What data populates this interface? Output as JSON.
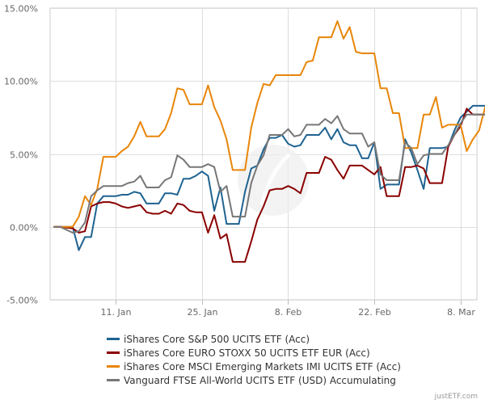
{
  "chart_data": {
    "type": "line",
    "title": "",
    "xlabel": "",
    "ylabel": "",
    "ylim": [
      -5,
      15
    ],
    "yticks": [
      -5,
      0,
      5,
      10,
      15
    ],
    "ytick_labels": [
      "-5.00%",
      "0.00%",
      "5.00%",
      "10.00%",
      "15.00%"
    ],
    "x_range": [
      1,
      69
    ],
    "xticks": [
      {
        "x": 11,
        "label": "11. Jan"
      },
      {
        "x": 25,
        "label": "25. Jan"
      },
      {
        "x": 39,
        "label": "8. Feb"
      },
      {
        "x": 53,
        "label": "22. Feb"
      },
      {
        "x": 67,
        "label": "8. Mar"
      }
    ],
    "x": [
      1,
      2,
      4,
      5,
      6,
      7,
      8,
      9,
      10,
      11,
      12,
      13,
      14,
      15,
      16,
      17,
      18,
      19,
      20,
      21,
      22,
      23,
      24,
      25,
      26,
      27,
      28,
      29,
      30,
      31,
      32,
      33,
      34,
      35,
      36,
      37,
      38,
      39,
      40,
      41,
      42,
      43,
      44,
      45,
      46,
      47,
      48,
      49,
      50,
      51,
      52,
      53,
      54,
      55,
      56,
      57,
      58,
      59,
      60,
      61,
      62,
      63,
      64,
      65,
      66,
      67,
      68,
      69,
      70,
      71,
      72
    ],
    "series": [
      {
        "name": "iShares Core S&P 500 UCITS ETF (Acc)",
        "color": "#1f6391",
        "values": [
          0,
          0,
          0,
          -1.6,
          -0.7,
          -0.7,
          1.6,
          2.1,
          2.1,
          2.1,
          2.2,
          2.2,
          2.4,
          2.3,
          1.6,
          1.6,
          1.6,
          2.3,
          2.3,
          2.2,
          3.3,
          3.3,
          3.5,
          3.8,
          3.5,
          1.1,
          2.7,
          0.2,
          0.2,
          0.2,
          2.4,
          4.0,
          4.2,
          5.3,
          6.1,
          6.1,
          6.3,
          5.7,
          5.5,
          5.6,
          6.3,
          6.3,
          6.3,
          6.8,
          6.0,
          6.7,
          5.8,
          5.6,
          5.6,
          4.7,
          4.7,
          5.8,
          2.6,
          2.9,
          2.9,
          2.9,
          6.0,
          5.1,
          3.9,
          2.6,
          5.4,
          5.4,
          5.4,
          5.5,
          6.6,
          7.5,
          7.9,
          8.3,
          8.3,
          8.3,
          8.1
        ]
      },
      {
        "name": "iShares Core EURO STOXX 50 UCITS ETF EUR (Acc)",
        "color": "#8b0000",
        "values": [
          0,
          0,
          -0.1,
          -0.4,
          -0.3,
          1.4,
          1.6,
          1.7,
          1.7,
          1.6,
          1.4,
          1.3,
          1.4,
          1.5,
          1.0,
          0.9,
          0.9,
          1.1,
          0.9,
          1.6,
          1.5,
          1.1,
          1.0,
          1.0,
          -0.4,
          0.8,
          -0.8,
          -0.5,
          -2.4,
          -2.4,
          -2.4,
          -1.0,
          0.5,
          1.4,
          2.5,
          2.6,
          2.6,
          2.8,
          2.6,
          2.3,
          3.7,
          3.7,
          3.7,
          4.8,
          4.6,
          3.9,
          3.3,
          4.2,
          4.2,
          4.2,
          3.9,
          3.6,
          4.1,
          2.1,
          2.1,
          2.1,
          4.1,
          4.1,
          4.2,
          4.0,
          3.0,
          3.0,
          3.0,
          5.5,
          6.3,
          6.9,
          8.1,
          7.7,
          7.7,
          7.7,
          7.5
        ]
      },
      {
        "name": "iShares Core MSCI Emerging Markets IMI UCITS ETF (Acc)",
        "color": "#e8860a",
        "values": [
          0,
          0,
          0,
          0.7,
          2.1,
          1.5,
          2.6,
          4.8,
          4.8,
          4.8,
          5.2,
          5.5,
          6.2,
          7.2,
          6.2,
          6.2,
          6.2,
          6.7,
          7.8,
          9.5,
          9.4,
          8.4,
          8.4,
          8.4,
          9.7,
          8.2,
          7.3,
          6.0,
          3.9,
          3.9,
          3.9,
          6.8,
          8.5,
          9.8,
          9.7,
          10.4,
          10.4,
          10.4,
          10.4,
          10.4,
          11.3,
          11.4,
          13.0,
          13.0,
          13.0,
          14.1,
          12.9,
          13.7,
          12.0,
          11.9,
          11.9,
          11.9,
          9.5,
          9.5,
          7.8,
          7.8,
          5.4,
          5.4,
          5.4,
          7.7,
          7.7,
          8.9,
          6.8,
          7.0,
          7.0,
          7.0,
          5.2,
          6.0,
          6.6,
          8.2,
          7.8
        ]
      },
      {
        "name": "Vanguard FTSE All-World UCITS ETF (USD) Accumulating",
        "color": "#777777",
        "values": [
          0,
          0,
          -0.4,
          -0.3,
          0.3,
          2.1,
          2.5,
          2.8,
          2.8,
          2.8,
          2.8,
          3.0,
          3.1,
          3.5,
          2.7,
          2.7,
          2.7,
          3.2,
          3.4,
          4.9,
          4.6,
          4.1,
          4.1,
          4.1,
          4.3,
          4.1,
          2.4,
          2.8,
          0.7,
          0.7,
          0.7,
          3.0,
          4.2,
          4.9,
          6.3,
          6.3,
          6.3,
          6.7,
          6.2,
          6.3,
          7.0,
          7.0,
          7.0,
          7.4,
          7.1,
          7.6,
          6.7,
          6.4,
          6.4,
          6.4,
          5.5,
          5.8,
          3.6,
          3.2,
          3.2,
          3.2,
          5.8,
          5.4,
          4.3,
          4.9,
          5.0,
          5.0,
          5.0,
          5.6,
          6.3,
          7.1,
          7.7,
          7.7,
          7.7,
          7.7,
          7.8
        ]
      }
    ]
  },
  "credit": "justETF.com"
}
